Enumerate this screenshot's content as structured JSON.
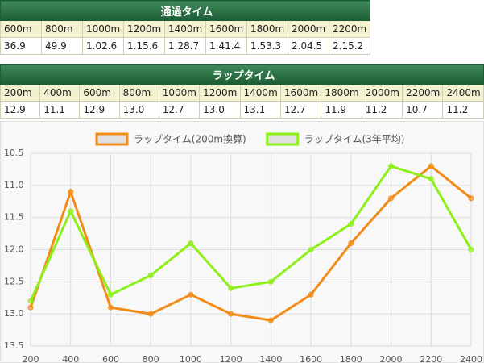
{
  "passing_table": {
    "title": "通過タイム",
    "headers": [
      "600m",
      "800m",
      "1000m",
      "1200m",
      "1400m",
      "1600m",
      "1800m",
      "2000m",
      "2200m"
    ],
    "values": [
      "36.9",
      "49.9",
      "1.02.6",
      "1.15.6",
      "1.28.7",
      "1.41.4",
      "1.53.3",
      "2.04.5",
      "2.15.2"
    ]
  },
  "lap_table": {
    "title": "ラップタイム",
    "headers": [
      "200m",
      "400m",
      "600m",
      "800m",
      "1000m",
      "1200m",
      "1400m",
      "1600m",
      "1800m",
      "2000m",
      "2200m",
      "2400m"
    ],
    "values": [
      "12.9",
      "11.1",
      "12.9",
      "13.0",
      "12.7",
      "13.0",
      "13.1",
      "12.7",
      "11.9",
      "11.2",
      "10.7",
      "11.2"
    ]
  },
  "chart_data": {
    "type": "line",
    "x": [
      200,
      400,
      600,
      800,
      1000,
      1200,
      1400,
      1600,
      1800,
      2000,
      2200,
      2400
    ],
    "series": [
      {
        "name": "ラップタイム(200m換算)",
        "color": "#f28c18",
        "values": [
          12.9,
          11.1,
          12.9,
          13.0,
          12.7,
          13.0,
          13.1,
          12.7,
          11.9,
          11.2,
          10.7,
          11.2
        ]
      },
      {
        "name": "ラップタイム(3年平均)",
        "color": "#8ef01a",
        "values": [
          12.8,
          11.4,
          12.7,
          12.4,
          11.9,
          12.6,
          12.5,
          12.0,
          11.6,
          10.7,
          10.9,
          12.0
        ]
      }
    ],
    "xlim": [
      200,
      2400
    ],
    "xticks": [
      200,
      400,
      600,
      800,
      1000,
      1200,
      1400,
      1600,
      1800,
      2000,
      2200,
      2400
    ],
    "ylim": [
      10.5,
      13.5
    ],
    "y_reversed": true,
    "yticks": [
      10.5,
      {
        "value": 11,
        "label": "11.0"
      },
      11.5,
      {
        "value": 12,
        "label": "12.0"
      },
      12.5,
      {
        "value": 13,
        "label": "13.0"
      },
      13.5
    ],
    "grid": true
  }
}
